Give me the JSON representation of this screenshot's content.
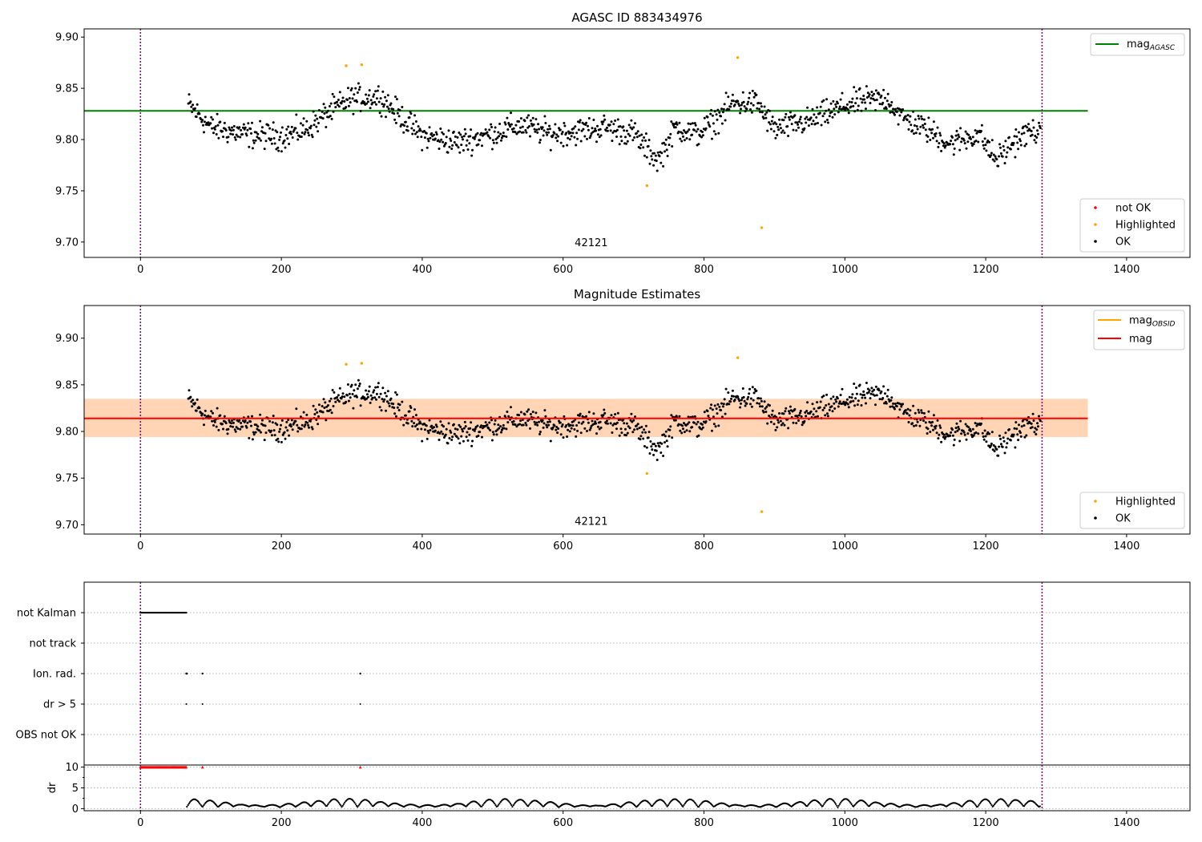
{
  "chart_data": [
    {
      "id": "agasc",
      "type": "scatter",
      "title": "AGASC ID 883434976",
      "xlim": [
        -80,
        1490
      ],
      "ylim": [
        9.685,
        9.908
      ],
      "xticks": [
        0,
        200,
        400,
        600,
        800,
        1000,
        1200,
        1400
      ],
      "yticks": [
        9.7,
        9.75,
        9.8,
        9.85,
        9.9
      ],
      "ytick_labels": [
        "9.70",
        "9.75",
        "9.80",
        "9.85",
        "9.90"
      ],
      "grid": false,
      "obsid_label": "42121",
      "obsid_label_pos": [
        640,
        9.696
      ],
      "vlines": [
        {
          "x": 0,
          "color": "#800080"
        },
        {
          "x": 1280,
          "color": "#800080"
        }
      ],
      "lines": [
        {
          "name": "mag",
          "sub": "AGASC",
          "y": 9.828,
          "x": [
            -80,
            1345
          ],
          "color": "#008000"
        }
      ],
      "line_legend": {
        "placement": "top-right"
      },
      "series_legend": {
        "placement": "bottom-right"
      },
      "series": [
        {
          "name": "not OK",
          "color": "#ff0000",
          "points": []
        },
        {
          "name": "Highlighted",
          "color": "#ffa500",
          "points": [
            [
              292,
              9.872
            ],
            [
              314,
              9.873
            ],
            [
              719,
              9.755
            ],
            [
              848,
              9.88
            ],
            [
              882,
              9.714
            ]
          ]
        },
        {
          "name": "OK",
          "color": "#000000",
          "generated": true
        }
      ]
    },
    {
      "id": "estimates",
      "type": "scatter",
      "title": "Magnitude Estimates",
      "xlim": [
        -80,
        1490
      ],
      "ylim": [
        9.69,
        9.935
      ],
      "xticks": [
        0,
        200,
        400,
        600,
        800,
        1000,
        1200,
        1400
      ],
      "yticks": [
        9.7,
        9.75,
        9.8,
        9.85,
        9.9
      ],
      "ytick_labels": [
        "9.70",
        "9.75",
        "9.80",
        "9.85",
        "9.90"
      ],
      "grid": false,
      "obsid_label": "42121",
      "obsid_label_pos": [
        640,
        9.7
      ],
      "vlines": [
        {
          "x": 0,
          "color": "#800080"
        },
        {
          "x": 1280,
          "color": "#800080"
        }
      ],
      "bands": [
        {
          "x": [
            -80,
            1345
          ],
          "y": [
            9.794,
            9.835
          ],
          "color": "#ffc0cb",
          "opacity": 0.45
        },
        {
          "x": [
            -80,
            1345
          ],
          "y": [
            9.794,
            9.835
          ],
          "color": "#ffa500",
          "opacity": 0.22
        }
      ],
      "lines": [
        {
          "name": "mag",
          "sub": "OBSID",
          "y": 9.814,
          "x": [
            -80,
            1345
          ],
          "color": "#ffa500",
          "legend_only": true
        },
        {
          "name": "mag",
          "sub": "",
          "y": 9.814,
          "x": [
            -80,
            1345
          ],
          "color": "#ff0000"
        }
      ],
      "line_legend": {
        "placement": "top-right"
      },
      "series_legend": {
        "placement": "bottom-right"
      },
      "series": [
        {
          "name": "Highlighted",
          "color": "#ffa500",
          "points": [
            [
              292,
              9.872
            ],
            [
              314,
              9.873
            ],
            [
              719,
              9.755
            ],
            [
              848,
              9.879
            ],
            [
              882,
              9.714
            ]
          ]
        },
        {
          "name": "OK",
          "color": "#000000",
          "generated": true
        }
      ]
    },
    {
      "id": "flags",
      "type": "scatter",
      "xlim": [
        -80,
        1490
      ],
      "categories": [
        "not Kalman",
        "not track",
        "Ion. rad.",
        "dr > 5",
        "OBS not OK"
      ],
      "grid": "horizontal-dotted",
      "vlines": [
        {
          "x": 0,
          "color": "#800080"
        },
        {
          "x": 1280,
          "color": "#800080"
        }
      ],
      "flag_points": {
        "not Kalman": {
          "range": [
            0,
            65
          ],
          "step": 1
        },
        "not track": [],
        "Ion. rad.": [
          65,
          66,
          88,
          312
        ],
        "dr > 5": [
          65,
          88,
          312
        ],
        "OBS not OK": []
      }
    },
    {
      "id": "dr",
      "type": "scatter",
      "ylabel": "dr",
      "xlim": [
        -80,
        1490
      ],
      "ylim": [
        -0.5,
        10.5
      ],
      "xticks": [
        0,
        200,
        400,
        600,
        800,
        1000,
        1200,
        1400
      ],
      "xtick_labels": [
        "0",
        "200",
        "400",
        "600",
        "800",
        "1000",
        "1200",
        "1400"
      ],
      "yticks": [
        0,
        5,
        10
      ],
      "ytick_labels": [
        "0",
        "5",
        "10"
      ],
      "grid": "horizontal-dotted",
      "vlines": [
        {
          "x": 0,
          "color": "#800080"
        },
        {
          "x": 1280,
          "color": "#800080"
        }
      ],
      "clipped": {
        "y": 10,
        "color": "#ff0000",
        "range": [
          0,
          65
        ],
        "extra": [
          88,
          312
        ]
      },
      "values": {
        "generated": true,
        "x_range": [
          66,
          1278
        ],
        "y_range": [
          0.1,
          2.6
        ]
      }
    }
  ]
}
